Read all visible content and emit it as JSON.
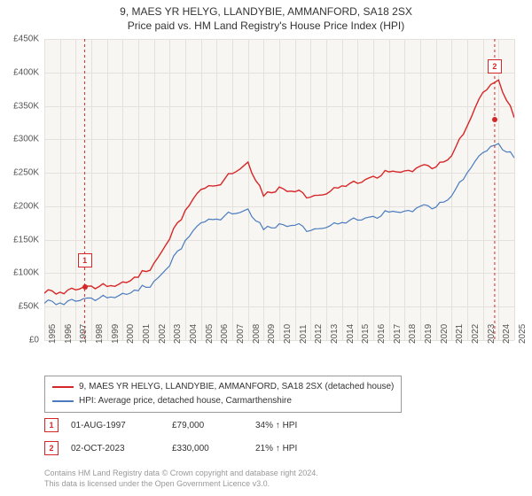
{
  "title": "9, MAES YR HELYG, LLANDYBIE, AMMANFORD, SA18 2SX",
  "subtitle": "Price paid vs. HM Land Registry's House Price Index (HPI)",
  "chart": {
    "type": "line",
    "background_color": "#f8f6f2",
    "grid_color": "#e4e1dc",
    "ylim": [
      0,
      450000
    ],
    "ytick_step": 50000,
    "yticks": [
      "£0",
      "£50K",
      "£100K",
      "£150K",
      "£200K",
      "£250K",
      "£300K",
      "£350K",
      "£400K",
      "£450K"
    ],
    "x_years": [
      1995,
      1996,
      1997,
      1998,
      1999,
      2000,
      2001,
      2002,
      2003,
      2004,
      2005,
      2006,
      2007,
      2008,
      2009,
      2010,
      2011,
      2012,
      2013,
      2014,
      2015,
      2016,
      2017,
      2018,
      2019,
      2020,
      2021,
      2022,
      2023,
      2024,
      2025
    ],
    "series_red": {
      "color": "#d62728",
      "label": "9, MAES YR HELYG, LLANDYBIE, AMMANFORD, SA18 2SX (detached house)",
      "y": [
        70000,
        72000,
        75000,
        80000,
        82000,
        85000,
        95000,
        115000,
        150000,
        195000,
        225000,
        230000,
        250000,
        265000,
        215000,
        230000,
        220000,
        215000,
        218000,
        230000,
        235000,
        245000,
        250000,
        255000,
        258000,
        260000,
        275000,
        320000,
        370000,
        390000,
        330000
      ]
    },
    "series_blue": {
      "color": "#4a7cbf",
      "label": "HPI: Average price, detached house, Carmarthenshire",
      "y": [
        55000,
        56000,
        58000,
        62000,
        65000,
        68000,
        75000,
        88000,
        110000,
        150000,
        175000,
        180000,
        190000,
        195000,
        165000,
        175000,
        170000,
        165000,
        168000,
        175000,
        180000,
        185000,
        190000,
        195000,
        198000,
        200000,
        215000,
        250000,
        280000,
        295000,
        270000
      ]
    },
    "markers": [
      {
        "n": "1",
        "year": 1997.58,
        "y": 79000,
        "color": "#d62728",
        "y_box_offset": -30
      },
      {
        "n": "2",
        "year": 2023.75,
        "y": 330000,
        "color": "#d62728",
        "y_box_offset": -60
      }
    ]
  },
  "sales": [
    {
      "n": "1",
      "date": "01-AUG-1997",
      "price": "£79,000",
      "delta": "34% ↑ HPI",
      "color": "#d62728"
    },
    {
      "n": "2",
      "date": "02-OCT-2023",
      "price": "£330,000",
      "delta": "21% ↑ HPI",
      "color": "#d62728"
    }
  ],
  "attribution_line1": "Contains HM Land Registry data © Crown copyright and database right 2024.",
  "attribution_line2": "This data is licensed under the Open Government Licence v3.0."
}
